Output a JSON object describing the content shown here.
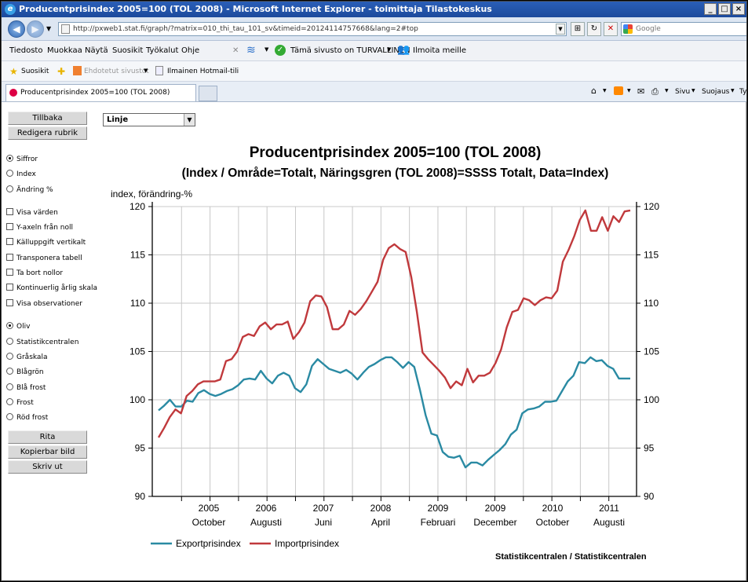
{
  "window": {
    "title": "Producentprisindex 2005=100 (TOL 2008) - Microsoft Internet Explorer - toimittaja Tilastokeskus"
  },
  "address": {
    "url": "http://pxweb1.stat.fi/graph/?matrix=010_thi_tau_101_sv&timeid=20124114757668&lang=2#top",
    "search_placeholder": "Google"
  },
  "menu": {
    "items": [
      "Tiedosto",
      "Muokkaa",
      "Näytä",
      "Suosikit",
      "Työkalut",
      "Ohje"
    ],
    "safety_text": "Tämä sivusto on TURVALLINEN",
    "report_text": "Ilmoita meille"
  },
  "favorites": {
    "suosikit": "Suosikit",
    "ehdotetut": "Ehdotetut sivustot",
    "hotmail": "Ilmainen Hotmail-tili"
  },
  "tabs": {
    "active": "Producentprisindex 2005=100 (TOL 2008)"
  },
  "commands": {
    "sivu": "Sivu",
    "suojaus": "Suojaus",
    "more": "Ty"
  },
  "left": {
    "back_button": "Tillbaka",
    "edit_button": "Redigera rubrik",
    "data_options": [
      {
        "label": "Siffror",
        "checked": true
      },
      {
        "label": "Index",
        "checked": false
      },
      {
        "label": "Ändring %",
        "checked": false
      }
    ],
    "check_options": [
      "Visa värden",
      "Y-axeln från noll",
      "Källuppgift vertikalt",
      "Transponera tabell",
      "Ta bort nollor",
      "Kontinuerlig årlig skala",
      "Visa observationer"
    ],
    "theme_options": [
      {
        "label": "Oliv",
        "checked": true
      },
      {
        "label": "Statistikcentralen",
        "checked": false
      },
      {
        "label": "Gråskala",
        "checked": false
      },
      {
        "label": "Blågrön",
        "checked": false
      },
      {
        "label": "Blå frost",
        "checked": false
      },
      {
        "label": "Frost",
        "checked": false
      },
      {
        "label": "Röd frost",
        "checked": false
      }
    ],
    "draw_button": "Rita",
    "copy_button": "Kopierbar bild",
    "print_button": "Skriv ut"
  },
  "chart_type_select": "Linje",
  "chart_data": {
    "type": "line",
    "title": "Producentprisindex 2005=100 (TOL 2008)",
    "subtitle": "(Index / Område=Totalt, Näringsgren (TOL 2008)=SSSS Totalt, Data=Index)",
    "ylabel": "index, förändring-%",
    "ylim": [
      90,
      120
    ],
    "yticks": [
      90,
      95,
      100,
      105,
      110,
      115,
      120
    ],
    "x_start": "2004M05",
    "x_end": "2011M12",
    "x_year_labels": [
      "2005",
      "2006",
      "2007",
      "2008",
      "2009",
      "2009",
      "2010",
      "2011"
    ],
    "x_month_labels": [
      "October",
      "Augusti",
      "Juni",
      "April",
      "Februari",
      "December",
      "October",
      "Augusti"
    ],
    "grid": true,
    "legend": "bottom-left",
    "series": [
      {
        "name": "Exportprisindex",
        "color": "#2a8aa3",
        "values": [
          98.9,
          99.4,
          100.0,
          99.3,
          99.3,
          99.9,
          99.8,
          100.7,
          101.0,
          100.6,
          100.4,
          100.6,
          100.9,
          101.1,
          101.5,
          102.1,
          102.2,
          102.1,
          103.0,
          102.2,
          101.7,
          102.5,
          102.8,
          102.5,
          101.2,
          100.8,
          101.6,
          103.5,
          104.2,
          103.7,
          103.2,
          103.0,
          102.8,
          103.1,
          102.7,
          102.1,
          102.8,
          103.4,
          103.7,
          104.1,
          104.4,
          104.4,
          103.9,
          103.3,
          103.9,
          103.4,
          101.0,
          98.4,
          96.5,
          96.3,
          94.6,
          94.1,
          94.0,
          94.2,
          93.0,
          93.5,
          93.5,
          93.2,
          93.8,
          94.3,
          94.8,
          95.4,
          96.4,
          96.9,
          98.6,
          99.0,
          99.1,
          99.3,
          99.8,
          99.8,
          99.9,
          100.9,
          101.9,
          102.5,
          103.9,
          103.8,
          104.4,
          104.0,
          104.1,
          103.5,
          103.2,
          102.2,
          102.2,
          102.2
        ]
      },
      {
        "name": "Importprisindex",
        "color": "#c0393c",
        "values": [
          96.1,
          97.1,
          98.2,
          99.0,
          98.6,
          100.4,
          100.9,
          101.6,
          101.9,
          101.9,
          101.9,
          102.1,
          104.0,
          104.2,
          105.0,
          106.5,
          106.8,
          106.6,
          107.6,
          108.0,
          107.3,
          107.8,
          107.8,
          108.1,
          106.3,
          107.0,
          108.0,
          110.2,
          110.8,
          110.7,
          109.6,
          107.3,
          107.3,
          107.8,
          109.2,
          108.8,
          109.4,
          110.2,
          111.2,
          112.2,
          114.5,
          115.7,
          116.1,
          115.6,
          115.3,
          112.7,
          109.1,
          104.9,
          104.2,
          103.6,
          103.0,
          102.3,
          101.2,
          101.9,
          101.5,
          103.2,
          101.8,
          102.5,
          102.5,
          102.8,
          103.8,
          105.2,
          107.5,
          109.1,
          109.3,
          110.5,
          110.3,
          109.8,
          110.3,
          110.6,
          110.5,
          111.3,
          114.3,
          115.5,
          116.9,
          118.6,
          119.6,
          117.5,
          117.5,
          118.9,
          117.5,
          119.0,
          118.4,
          119.5,
          119.6
        ]
      }
    ]
  },
  "source": "Statistikcentralen / Statistikcentralen"
}
